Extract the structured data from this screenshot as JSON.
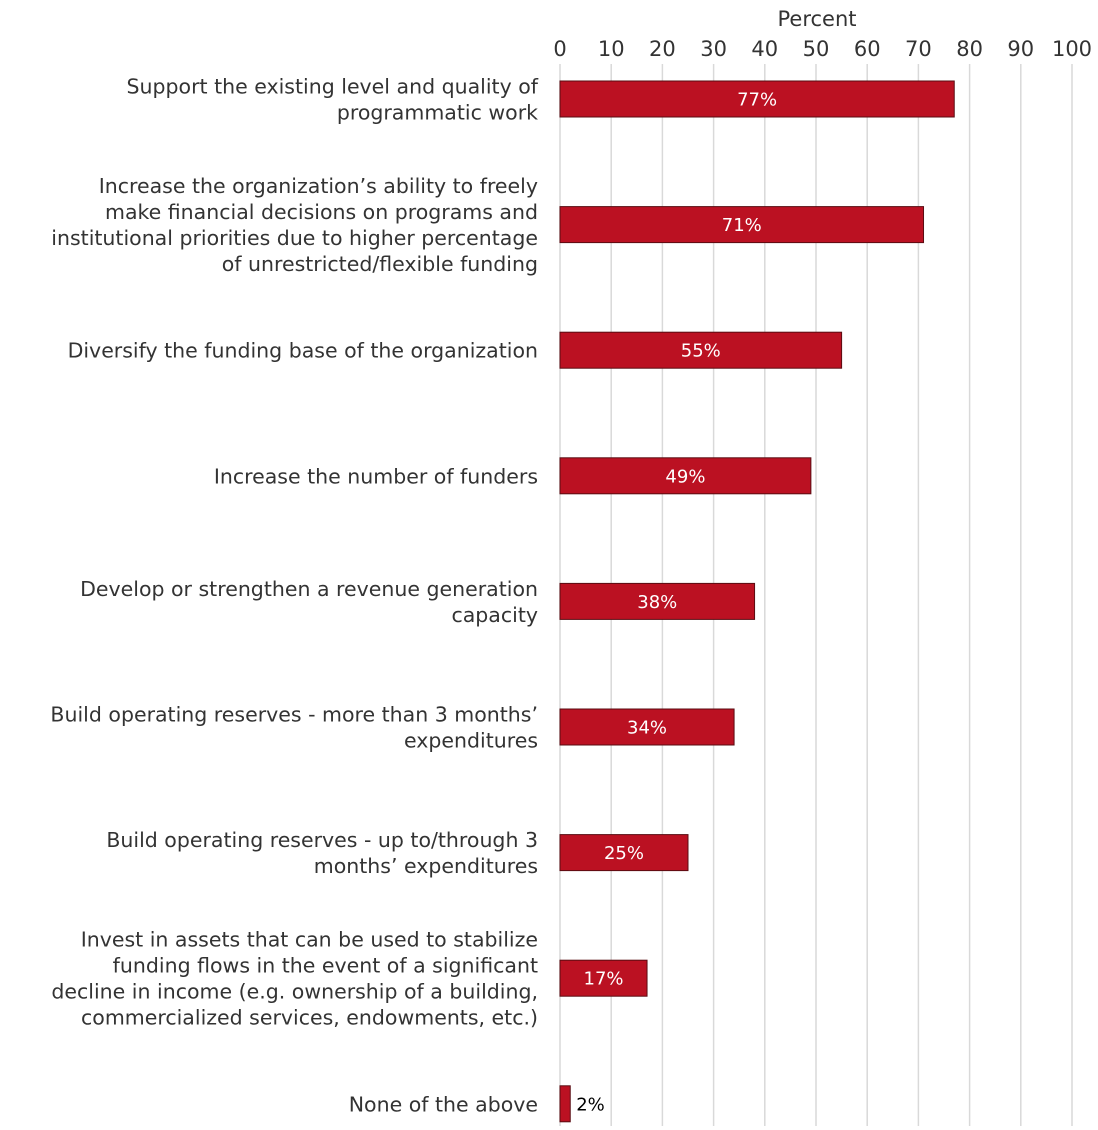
{
  "chart_data": {
    "type": "bar",
    "orientation": "horizontal",
    "xlabel": "Percent",
    "xlabel_position": "top",
    "xlim": [
      0,
      100
    ],
    "xticks": [
      0,
      10,
      20,
      30,
      40,
      50,
      60,
      70,
      80,
      90,
      100
    ],
    "grid": true,
    "legend": "none",
    "bar_color": "#bb1122",
    "bar_edge_color": "#5a0c12",
    "categories": [
      [
        "Support the existing level and quality of",
        "programmatic work"
      ],
      [
        "Increase the organization’s ability to freely",
        "make financial decisions on programs and",
        "institutional priorities due to higher percentage",
        "of unrestricted/flexible funding"
      ],
      [
        "Diversify the funding base of the organization"
      ],
      [
        "Increase the number of funders"
      ],
      [
        "Develop or strengthen a revenue generation",
        "capacity"
      ],
      [
        "Build operating reserves - more than 3 months’",
        "expenditures"
      ],
      [
        "Build operating reserves - up to/through 3",
        "months’ expenditures"
      ],
      [
        "Invest in assets that can be used to stabilize",
        "funding flows in the event of a significant",
        "decline in income (e.g. ownership of a building,",
        "commercialized services, endowments, etc.)"
      ],
      [
        "None of the above"
      ]
    ],
    "values": [
      77,
      71,
      55,
      49,
      38,
      34,
      25,
      17,
      2
    ],
    "data_labels": [
      "77%",
      "71%",
      "55%",
      "49%",
      "38%",
      "34%",
      "25%",
      "17%",
      "2%"
    ]
  }
}
